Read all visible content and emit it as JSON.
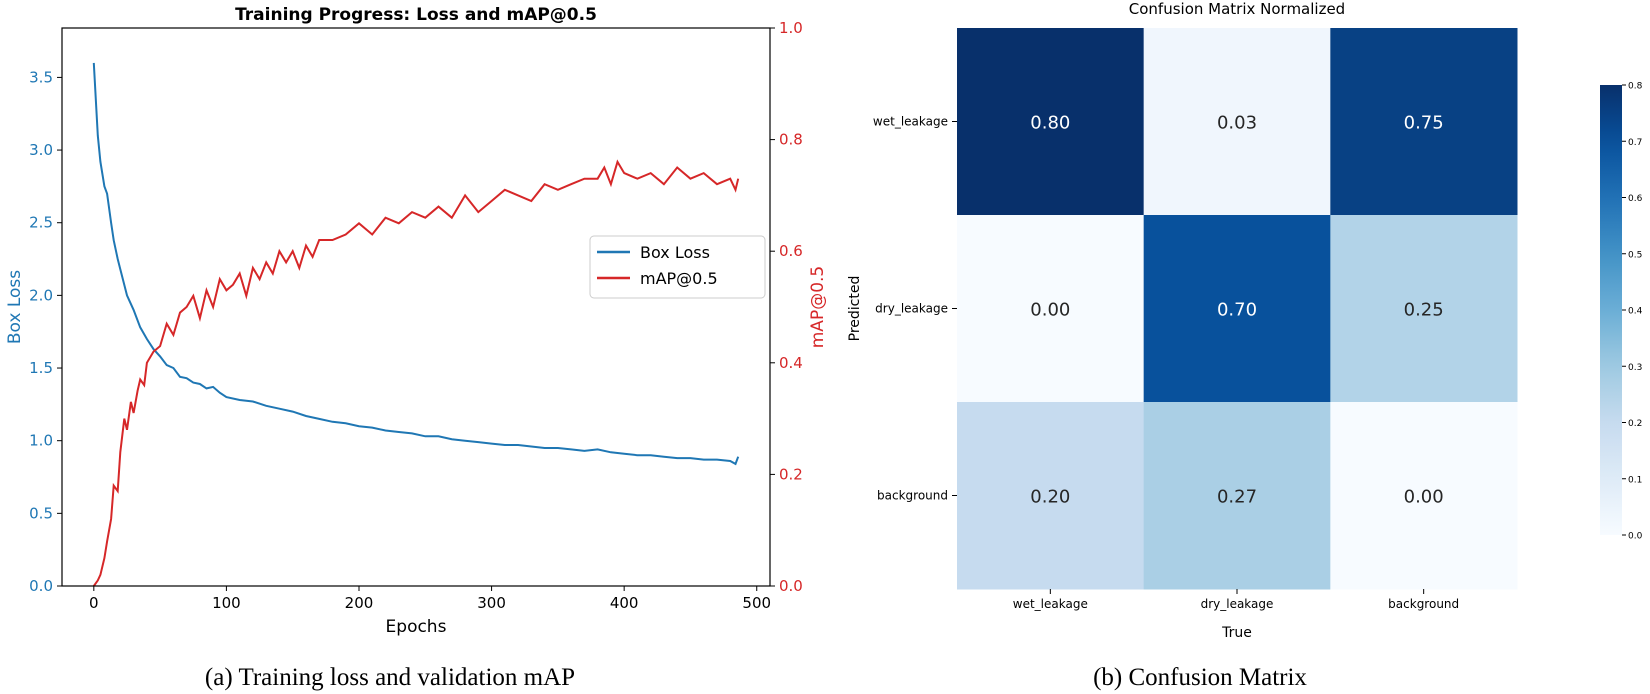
{
  "chart_data": [
    {
      "type": "line",
      "title": "Training Progress: Loss and mAP@0.5",
      "xlabel": "Epochs",
      "ylabel": "Box Loss",
      "ylabel_right": "mAP@0.5",
      "xlim": [
        -24,
        510
      ],
      "ylim": [
        0,
        3.84
      ],
      "ylim_right": [
        0,
        1.0
      ],
      "xticks": [
        0,
        100,
        200,
        300,
        400,
        500
      ],
      "yticks": [
        0.0,
        0.5,
        1.0,
        1.5,
        2.0,
        2.5,
        3.0,
        3.5
      ],
      "yticks_right": [
        0.0,
        0.2,
        0.4,
        0.6,
        0.8,
        1.0
      ],
      "legend_position": "center-right",
      "grid": false,
      "caption": "(a) Training loss and validation mAP",
      "series": [
        {
          "name": "Box Loss",
          "axis": "left",
          "color": "#1f77b4",
          "x": [
            0,
            3,
            5,
            8,
            10,
            13,
            15,
            18,
            20,
            25,
            30,
            35,
            40,
            45,
            50,
            55,
            60,
            65,
            70,
            75,
            80,
            85,
            90,
            95,
            100,
            110,
            120,
            130,
            140,
            150,
            160,
            170,
            180,
            190,
            200,
            210,
            220,
            230,
            240,
            250,
            260,
            270,
            280,
            290,
            300,
            310,
            320,
            330,
            340,
            350,
            360,
            370,
            380,
            390,
            400,
            410,
            420,
            430,
            440,
            450,
            460,
            470,
            480,
            484,
            486
          ],
          "y": [
            3.6,
            3.1,
            2.92,
            2.75,
            2.7,
            2.5,
            2.38,
            2.25,
            2.18,
            2.0,
            1.9,
            1.78,
            1.7,
            1.63,
            1.58,
            1.52,
            1.5,
            1.44,
            1.43,
            1.4,
            1.39,
            1.36,
            1.37,
            1.33,
            1.3,
            1.28,
            1.27,
            1.24,
            1.22,
            1.2,
            1.17,
            1.15,
            1.13,
            1.12,
            1.1,
            1.09,
            1.07,
            1.06,
            1.05,
            1.03,
            1.03,
            1.01,
            1.0,
            0.99,
            0.98,
            0.97,
            0.97,
            0.96,
            0.95,
            0.95,
            0.94,
            0.93,
            0.94,
            0.92,
            0.91,
            0.9,
            0.9,
            0.89,
            0.88,
            0.88,
            0.87,
            0.87,
            0.86,
            0.84,
            0.89
          ]
        },
        {
          "name": "mAP@0.5",
          "axis": "right",
          "color": "#d62728",
          "x": [
            0,
            3,
            5,
            8,
            10,
            13,
            15,
            18,
            20,
            23,
            25,
            28,
            30,
            33,
            35,
            38,
            40,
            45,
            50,
            55,
            60,
            65,
            70,
            75,
            80,
            85,
            90,
            95,
            100,
            105,
            110,
            115,
            120,
            125,
            130,
            135,
            140,
            145,
            150,
            155,
            160,
            165,
            170,
            180,
            190,
            200,
            210,
            220,
            230,
            240,
            250,
            260,
            270,
            280,
            290,
            300,
            310,
            320,
            330,
            340,
            350,
            360,
            370,
            380,
            385,
            390,
            395,
            400,
            410,
            420,
            430,
            440,
            450,
            460,
            470,
            480,
            484,
            486
          ],
          "y": [
            0.0,
            0.01,
            0.02,
            0.05,
            0.08,
            0.12,
            0.18,
            0.17,
            0.24,
            0.3,
            0.28,
            0.33,
            0.31,
            0.35,
            0.37,
            0.36,
            0.4,
            0.42,
            0.43,
            0.47,
            0.45,
            0.49,
            0.5,
            0.52,
            0.48,
            0.53,
            0.5,
            0.55,
            0.53,
            0.54,
            0.56,
            0.52,
            0.57,
            0.55,
            0.58,
            0.56,
            0.6,
            0.58,
            0.6,
            0.57,
            0.61,
            0.59,
            0.62,
            0.62,
            0.63,
            0.65,
            0.63,
            0.66,
            0.65,
            0.67,
            0.66,
            0.68,
            0.66,
            0.7,
            0.67,
            0.69,
            0.71,
            0.7,
            0.69,
            0.72,
            0.71,
            0.72,
            0.73,
            0.73,
            0.75,
            0.72,
            0.76,
            0.74,
            0.73,
            0.74,
            0.72,
            0.75,
            0.73,
            0.74,
            0.72,
            0.73,
            0.71,
            0.73
          ]
        }
      ]
    },
    {
      "type": "heatmap",
      "title": "Confusion Matrix Normalized",
      "xlabel": "True",
      "ylabel": "Predicted",
      "x_categories": [
        "wet_leakage",
        "dry_leakage",
        "background"
      ],
      "y_categories": [
        "wet_leakage",
        "dry_leakage",
        "background"
      ],
      "values": [
        [
          0.8,
          0.03,
          0.75
        ],
        [
          0.0,
          0.7,
          0.25
        ],
        [
          0.2,
          0.27,
          0.0
        ]
      ],
      "value_labels": [
        [
          "0.80",
          "0.03",
          "0.75"
        ],
        [
          "0.00",
          "0.70",
          "0.25"
        ],
        [
          "0.20",
          "0.27",
          "0.00"
        ]
      ],
      "colormap": "Blues",
      "colorbar_range": [
        0.0,
        0.8
      ],
      "colorbar_ticks": [
        "0.0",
        "0.1",
        "0.2",
        "0.3",
        "0.4",
        "0.5",
        "0.6",
        "0.7",
        "0.8"
      ],
      "caption": "(b) Confusion Matrix"
    }
  ]
}
